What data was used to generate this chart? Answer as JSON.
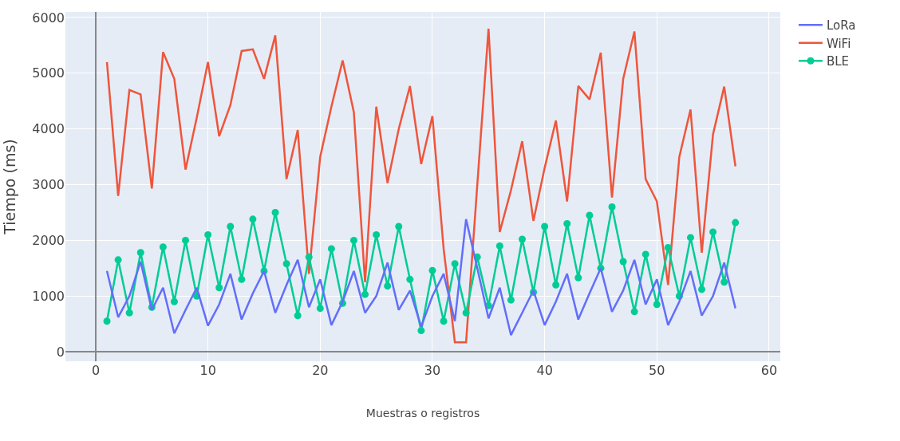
{
  "chart_data": {
    "type": "line",
    "xlabel": "Muestras o registros",
    "ylabel": "Tiempo (ms)",
    "x": [
      1,
      2,
      3,
      4,
      5,
      6,
      7,
      8,
      9,
      10,
      11,
      12,
      13,
      14,
      15,
      16,
      17,
      18,
      19,
      20,
      21,
      22,
      23,
      24,
      25,
      26,
      27,
      28,
      29,
      30,
      31,
      32,
      33,
      34,
      35,
      36,
      37,
      38,
      39,
      40,
      41,
      42,
      43,
      44,
      45,
      46,
      47,
      48,
      49,
      50,
      51,
      52,
      53,
      54,
      55,
      56,
      57
    ],
    "series": [
      {
        "name": "LoRa",
        "color": "#636efa",
        "marker": "none",
        "values": [
          1450,
          620,
          1000,
          1620,
          750,
          1150,
          330,
          750,
          1150,
          470,
          850,
          1400,
          580,
          1050,
          1450,
          700,
          1200,
          1650,
          800,
          1300,
          480,
          900,
          1450,
          700,
          1000,
          1600,
          750,
          1100,
          450,
          1000,
          1400,
          550,
          2380,
          1500,
          600,
          1150,
          300,
          700,
          1100,
          480,
          900,
          1400,
          580,
          1050,
          1500,
          720,
          1100,
          1650,
          850,
          1300,
          480,
          900,
          1450,
          650,
          1000,
          1600,
          780
        ]
      },
      {
        "name": "WiFi",
        "color": "#ef553b",
        "marker": "none",
        "values": [
          5200,
          2800,
          4700,
          4620,
          2930,
          5380,
          4900,
          3270,
          4200,
          5200,
          3870,
          4430,
          5400,
          5430,
          4900,
          5680,
          3100,
          3980,
          1400,
          3500,
          4400,
          5230,
          4300,
          1250,
          4400,
          3030,
          4000,
          4770,
          3370,
          4230,
          1850,
          170,
          170,
          3000,
          5800,
          2150,
          2900,
          3780,
          2350,
          3300,
          4150,
          2700,
          4770,
          4530,
          5370,
          2770,
          4900,
          5750,
          3100,
          2700,
          1200,
          3500,
          4350,
          1780,
          3900,
          4760,
          3330
        ]
      },
      {
        "name": "BLE",
        "color": "#00cc96",
        "marker": "circle",
        "values": [
          550,
          1650,
          700,
          1780,
          800,
          1880,
          900,
          2000,
          1000,
          2100,
          1150,
          2250,
          1300,
          2380,
          1450,
          2500,
          1580,
          650,
          1700,
          780,
          1850,
          870,
          2000,
          1030,
          2100,
          1180,
          2250,
          1300,
          380,
          1460,
          550,
          1580,
          700,
          1700,
          830,
          1900,
          930,
          2020,
          1070,
          2250,
          1200,
          2300,
          1330,
          2450,
          1500,
          2600,
          1620,
          720,
          1750,
          850,
          1870,
          1000,
          2050,
          1120,
          2150,
          1250,
          2320
        ]
      }
    ],
    "xlim": [
      -2.7,
      61
    ],
    "xticks": [
      0,
      10,
      20,
      30,
      40,
      50,
      60
    ],
    "ylim": [
      -170,
      6100
    ],
    "yticks": [
      0,
      1000,
      2000,
      3000,
      4000,
      5000,
      6000
    ],
    "grid": true,
    "legend": "top right",
    "line_style": "solid"
  }
}
